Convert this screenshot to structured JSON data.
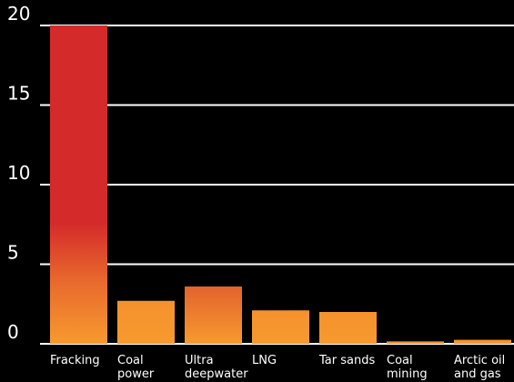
{
  "chart_data": {
    "type": "bar",
    "categories": [
      [
        "Fracking"
      ],
      [
        "Coal",
        "power"
      ],
      [
        "Ultra",
        "deepwater"
      ],
      [
        "LNG"
      ],
      [
        "Tar sands"
      ],
      [
        "Coal",
        "mining"
      ],
      [
        "Arctic oil",
        "and gas"
      ]
    ],
    "values": [
      20,
      2.7,
      3.6,
      2.1,
      2.0,
      0.15,
      0.25
    ],
    "ylim": [
      0,
      20
    ],
    "yticks": [
      0,
      5,
      10,
      15,
      20
    ],
    "grid": true,
    "background": "#000000",
    "colors": {
      "bar_top_highlight": "#d42a2a",
      "bar_base": "#f79a2e",
      "bar_mid": "#e3632d",
      "grid": "#ffffff",
      "text": "#ffffff"
    }
  }
}
